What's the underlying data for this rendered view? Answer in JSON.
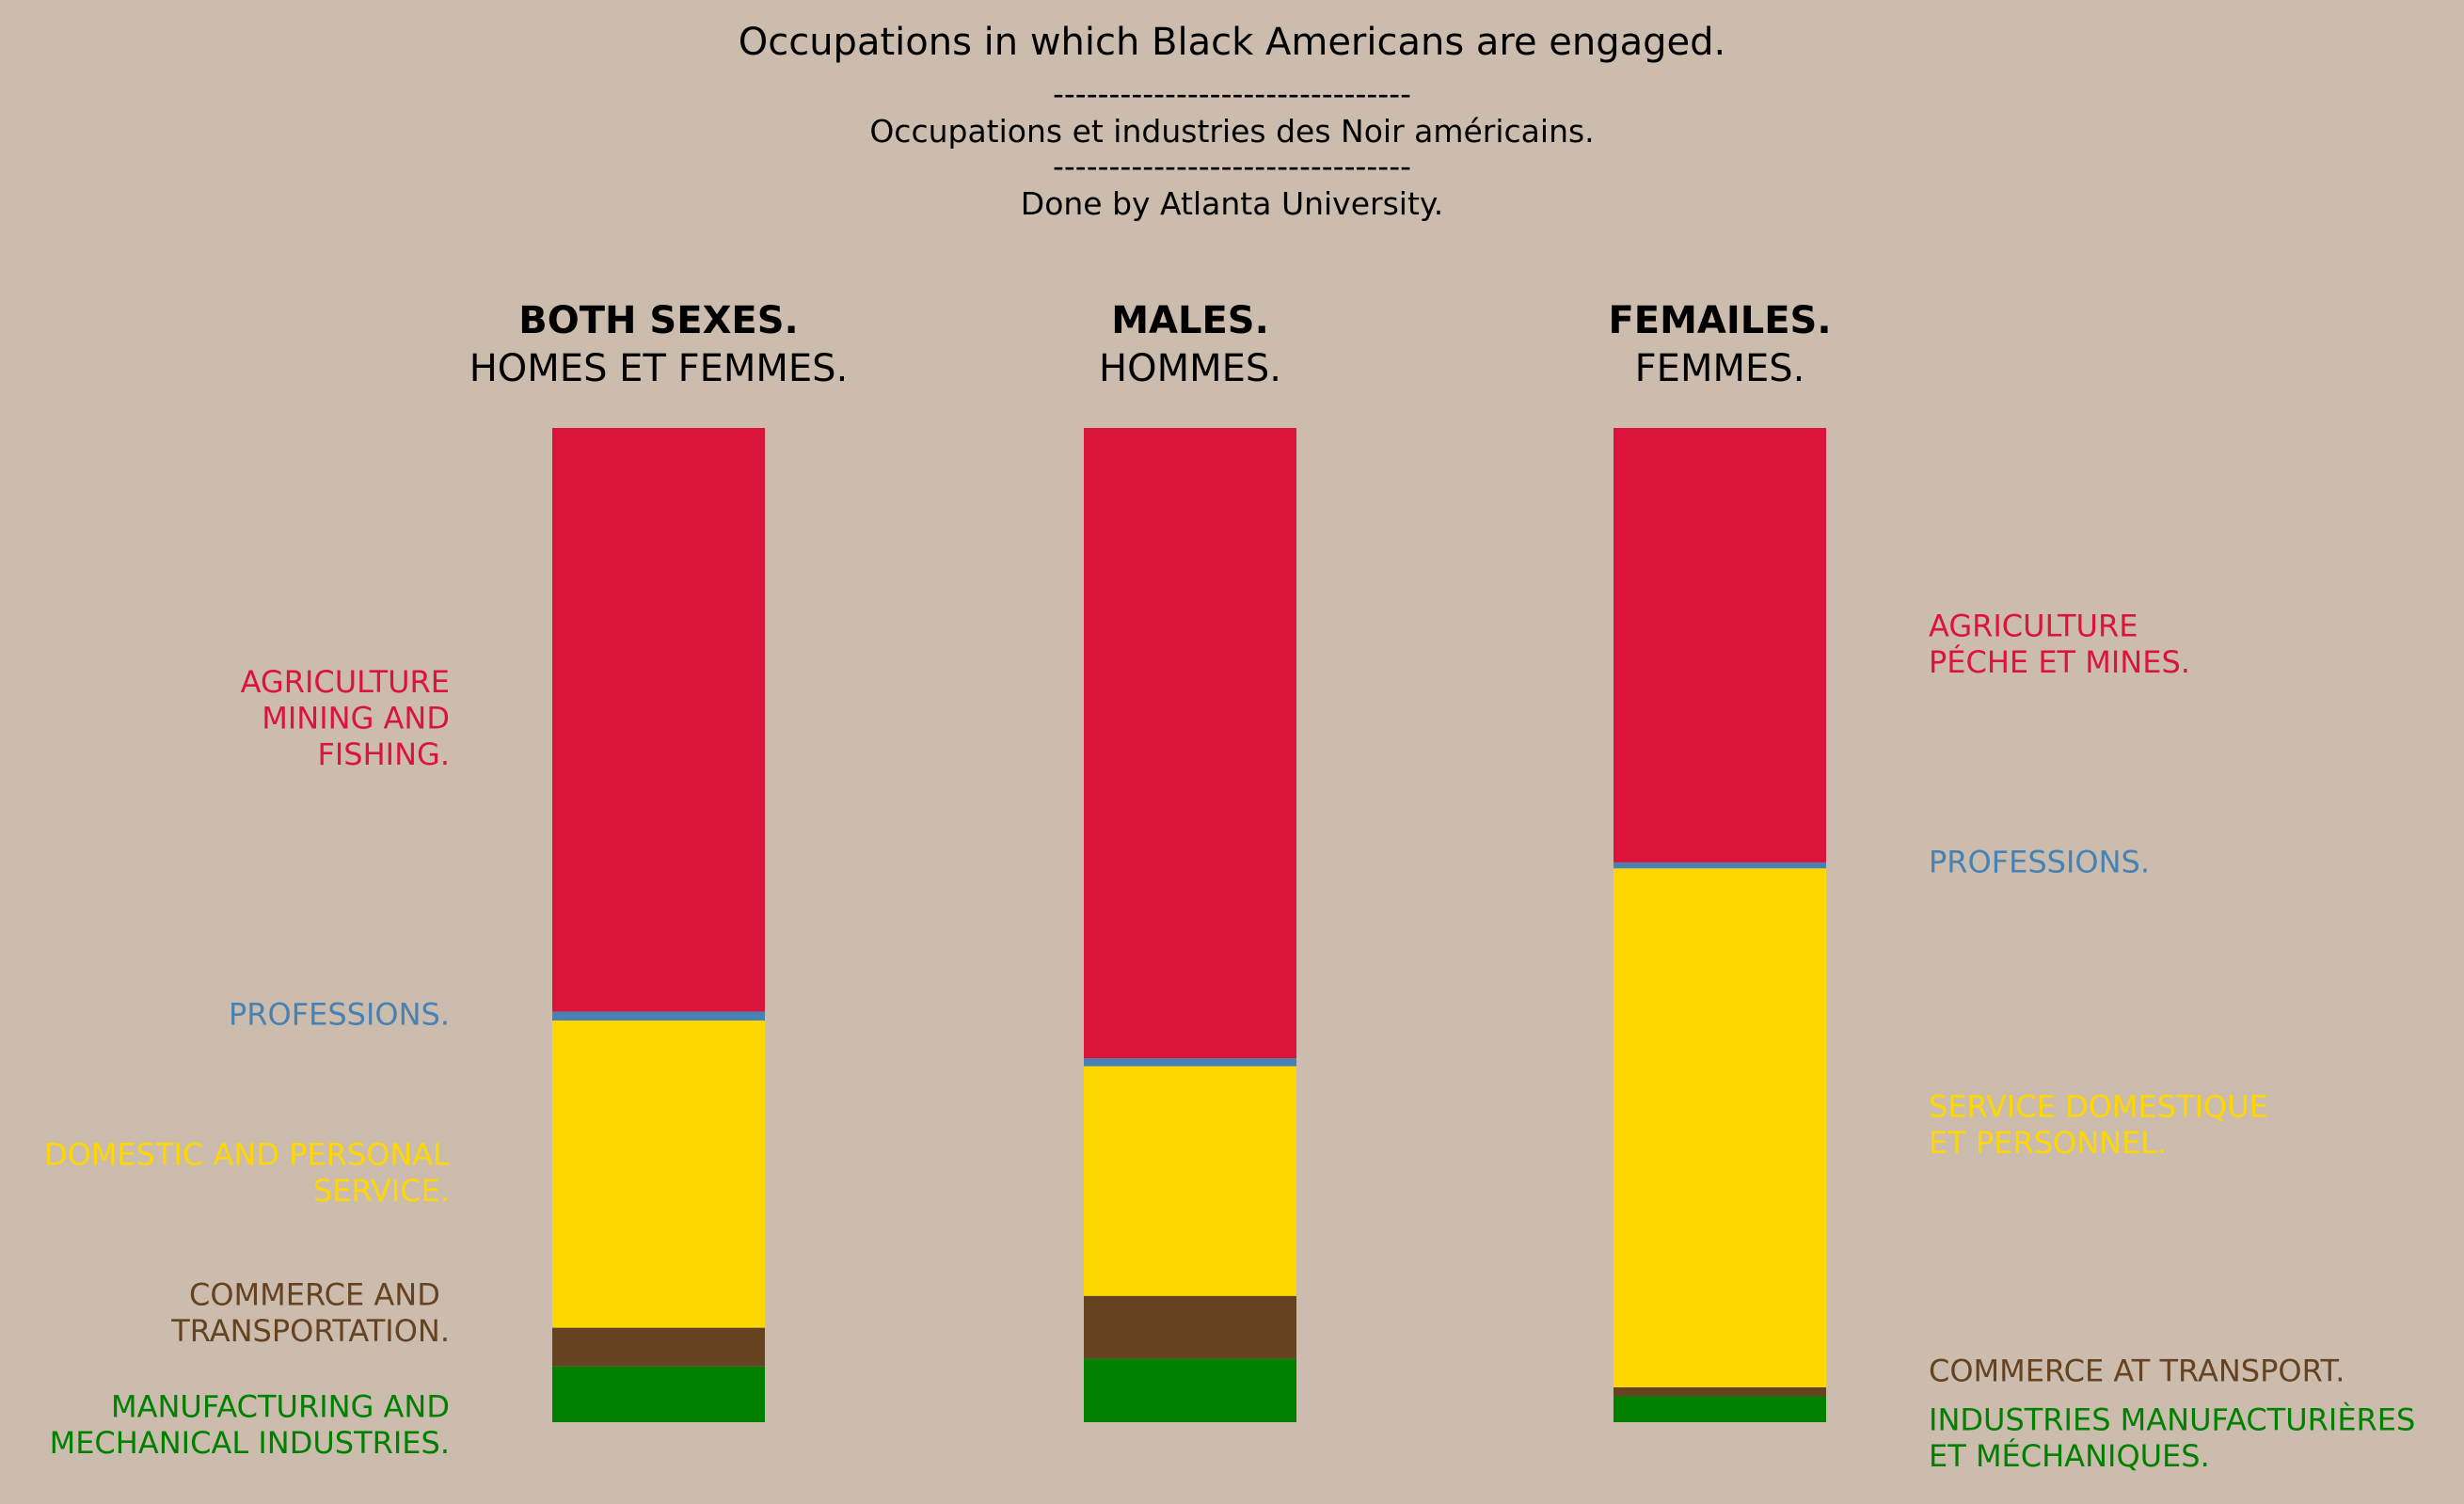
{
  "header": {
    "title": "Occupations in which Black Americans are engaged.",
    "divider_1": "--------------------------------",
    "subtitle_fr": "Occupations et industries des Noir américains.",
    "divider_2": "--------------------------------",
    "credit": "Done by Atlanta University."
  },
  "chart_data": {
    "type": "bar",
    "stacked": true,
    "orientation": "vertical",
    "ylim": [
      0,
      100
    ],
    "grid": false,
    "legend_placement": "left and right side labels",
    "categories": [
      {
        "label_en": "BOTH SEXES.",
        "label_fr": "HOMES ET FEMMES."
      },
      {
        "label_en": "MALES.",
        "label_fr": "HOMMES."
      },
      {
        "label_en": "FEMAILES.",
        "label_fr": "FEMMES."
      }
    ],
    "series": [
      {
        "key": "manufacturing",
        "label_en": "MANUFACTURING AND\nMECHANICAL INDUSTRIES.",
        "label_fr": "INDUSTRIES MANUFACTURIÈRES\nET MÉCHANIQUES.",
        "color": "#008000",
        "values": [
          5.6,
          6.4,
          2.6
        ]
      },
      {
        "key": "commerce",
        "label_en": "COMMERCE AND \nTRANSPORTATION.",
        "label_fr": "COMMERCE AT TRANSPORT.",
        "color": "#654321",
        "values": [
          3.9,
          6.3,
          0.9
        ]
      },
      {
        "key": "domestic",
        "label_en": "DOMESTIC AND PERSONAL\nSERVICE.",
        "label_fr": "SERVICE DOMESTIQUE\nET PERSONNEL.",
        "color": "#ffd700",
        "values": [
          30.9,
          23.1,
          52.2
        ]
      },
      {
        "key": "professions",
        "label_en": "PROFESSIONS.",
        "label_fr": "PROFESSIONS.",
        "color": "#4682b4",
        "values": [
          0.9,
          0.8,
          0.6
        ]
      },
      {
        "key": "agriculture",
        "label_en": "AGRICULTURE\nMINING AND\nFISHING.",
        "label_fr": "AGRICULTURE\nPÉCHE ET MINES.",
        "color": "#dc143c",
        "values": [
          58.7,
          63.4,
          43.7
        ]
      }
    ]
  }
}
